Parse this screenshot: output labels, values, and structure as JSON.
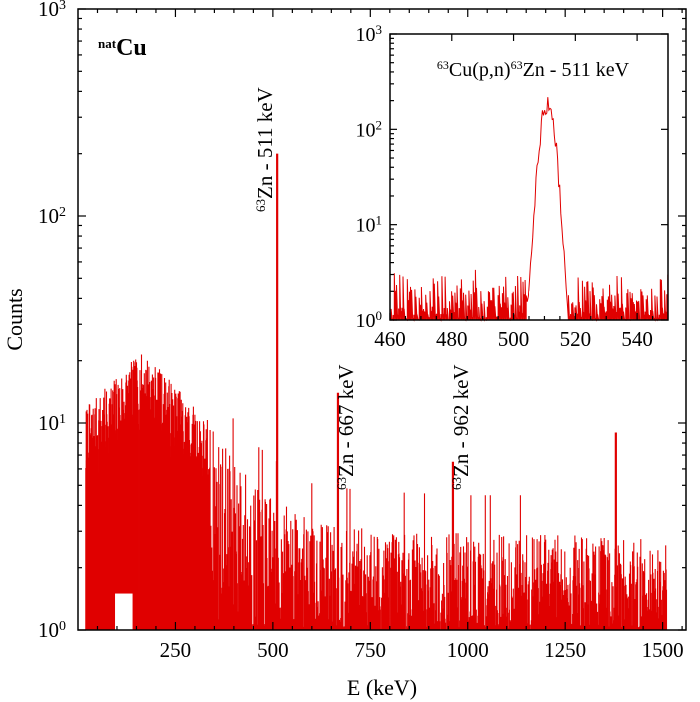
{
  "chart_data": [
    {
      "type": "line",
      "scale_y": "log",
      "xlabel": "E (keV)",
      "ylabel": "Counts",
      "xlim": [
        0,
        1560
      ],
      "ylim": [
        1,
        1000
      ],
      "x_ticks": [
        250,
        500,
        750,
        1000,
        1250,
        1500
      ],
      "x_tick_labels": [
        "250",
        "500",
        "750",
        "1000",
        "1250",
        "1500"
      ],
      "y_ticks": [
        1,
        10,
        100,
        1000
      ],
      "y_tick_labels": [
        [
          "10",
          "0"
        ],
        [
          "10",
          "1"
        ],
        [
          "10",
          "2"
        ],
        [
          "10",
          "3"
        ]
      ],
      "sample_label": {
        "sup": "nat",
        "main": "Cu"
      },
      "series_color": "#e00000",
      "continuum_envelope": [
        [
          20,
          12
        ],
        [
          60,
          14
        ],
        [
          100,
          17
        ],
        [
          140,
          20
        ],
        [
          170,
          22
        ],
        [
          200,
          19
        ],
        [
          240,
          16
        ],
        [
          280,
          13
        ],
        [
          320,
          11
        ],
        [
          360,
          8
        ],
        [
          400,
          6.5
        ],
        [
          450,
          5
        ],
        [
          500,
          4.2
        ],
        [
          550,
          3.6
        ],
        [
          600,
          3.2
        ],
        [
          700,
          3.0
        ],
        [
          800,
          2.9
        ],
        [
          1000,
          2.8
        ],
        [
          1200,
          2.8
        ],
        [
          1510,
          2.6
        ]
      ],
      "peaks": [
        {
          "energy": 511,
          "counts": 200,
          "label": {
            "sup": "63",
            "text": "Zn - 511 keV"
          }
        },
        {
          "energy": 667,
          "counts": 14,
          "label": {
            "sup": "63",
            "text": "Zn - 667 keV"
          }
        },
        {
          "energy": 962,
          "counts": 6.5,
          "label": {
            "sup": "63",
            "text": "Zn - 962 keV"
          }
        },
        {
          "energy": 1380,
          "counts": 9,
          "label": null
        }
      ]
    },
    {
      "type": "line",
      "scale_y": "log",
      "xlim": [
        460,
        550
      ],
      "ylim": [
        1,
        1000
      ],
      "x_ticks": [
        460,
        480,
        500,
        520,
        540
      ],
      "x_tick_labels": [
        "460",
        "480",
        "500",
        "520",
        "540"
      ],
      "y_ticks": [
        1,
        10,
        100,
        1000
      ],
      "y_tick_labels": [
        [
          "10",
          "0"
        ],
        [
          "10",
          "1"
        ],
        [
          "10",
          "2"
        ],
        [
          "10",
          "3"
        ]
      ],
      "title": {
        "sup1": "63",
        "part1": "Cu(p,n)",
        "sup2": "63",
        "part2": "Zn - 511 keV"
      },
      "series_color": "#e00000",
      "peak": {
        "center": 511,
        "sigma": 1.9,
        "height": 185
      },
      "baseline_max": 3
    }
  ]
}
